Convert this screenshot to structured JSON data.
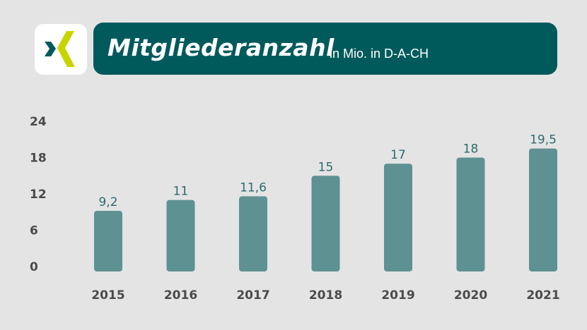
{
  "header": {
    "logo_icon": "xing-logo-icon",
    "title": "Mitgliederanzahl",
    "subtitle": "in Mio. in D-A-CH"
  },
  "colors": {
    "background": "#e4e4e4",
    "banner": "#005a5c",
    "bar": "#5e9192",
    "value_label": "#2c6a6d",
    "axis_label": "#4a4a4a",
    "logo_dark": "#005a5c",
    "logo_lime": "#c8d400"
  },
  "chart_data": {
    "type": "bar",
    "categories": [
      "2015",
      "2016",
      "2017",
      "2018",
      "2019",
      "2020",
      "2021"
    ],
    "values": [
      9.2,
      11,
      11.6,
      15,
      17,
      18,
      19.5
    ],
    "value_labels": [
      "9,2",
      "11",
      "11,6",
      "15",
      "17",
      "18",
      "19,5"
    ],
    "y_ticks": [
      0,
      6,
      12,
      18,
      24
    ],
    "y_tick_labels": [
      "0",
      "6",
      "12",
      "18",
      "24"
    ],
    "ylim": [
      0,
      24
    ],
    "grid": false,
    "legend": false
  }
}
